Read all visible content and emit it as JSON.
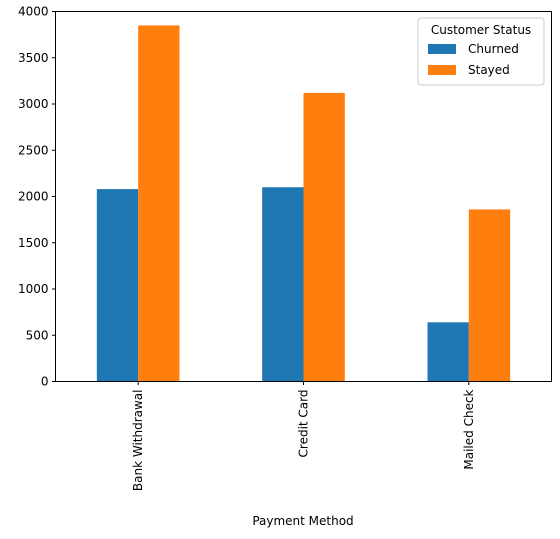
{
  "chart_data": {
    "type": "bar",
    "categories": [
      "Bank Withdrawal",
      "Credit Card",
      "Mailed Check"
    ],
    "series": [
      {
        "name": "Churned",
        "values": [
          2080,
          2100,
          640
        ],
        "color": "#1f77b4"
      },
      {
        "name": "Stayed",
        "values": [
          3850,
          3120,
          1860
        ],
        "color": "#ff7f0e"
      }
    ],
    "xlabel": "Payment Method",
    "ylabel": "",
    "ylim": [
      0,
      4000
    ],
    "yticks": [
      0,
      500,
      1000,
      1500,
      2000,
      2500,
      3000,
      3500,
      4000
    ],
    "grid": false,
    "legend": {
      "title": "Customer Status",
      "position": "top-right"
    }
  }
}
